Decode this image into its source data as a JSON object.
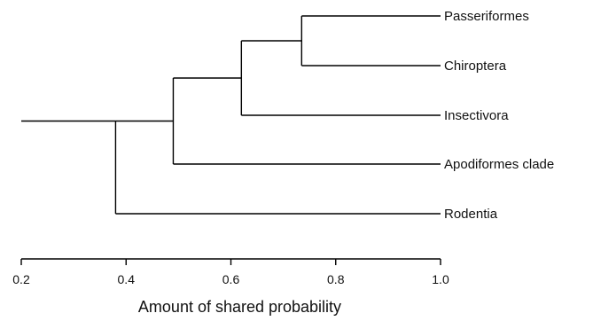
{
  "chart_data": {
    "type": "dendrogram",
    "xlabel": "Amount of shared probability",
    "xlim": [
      0.2,
      1.0
    ],
    "x_ticks": [
      0.2,
      0.4,
      0.6,
      0.8,
      1.0
    ],
    "x_tick_labels": [
      "0.2",
      "0.4",
      "0.6",
      "0.8",
      "1.0"
    ],
    "leaves": [
      "Passeriformes",
      "Chiroptera",
      "Insectivora",
      "Apodiformes clade",
      "Rodentia"
    ],
    "merges": [
      {
        "children": [
          "Passeriformes",
          "Chiroptera"
        ],
        "height": 0.735
      },
      {
        "children": [
          "Passeriformes+Chiroptera",
          "Insectivora"
        ],
        "height": 0.62
      },
      {
        "children": [
          "Passeriformes+Chiroptera+Insectivora",
          "Apodiformes clade"
        ],
        "height": 0.49
      },
      {
        "children": [
          "Passeriformes+Chiroptera+Insectivora+Apodiformes clade",
          "Rodentia"
        ],
        "height": 0.38
      }
    ],
    "root_stub_from": 0.2
  }
}
